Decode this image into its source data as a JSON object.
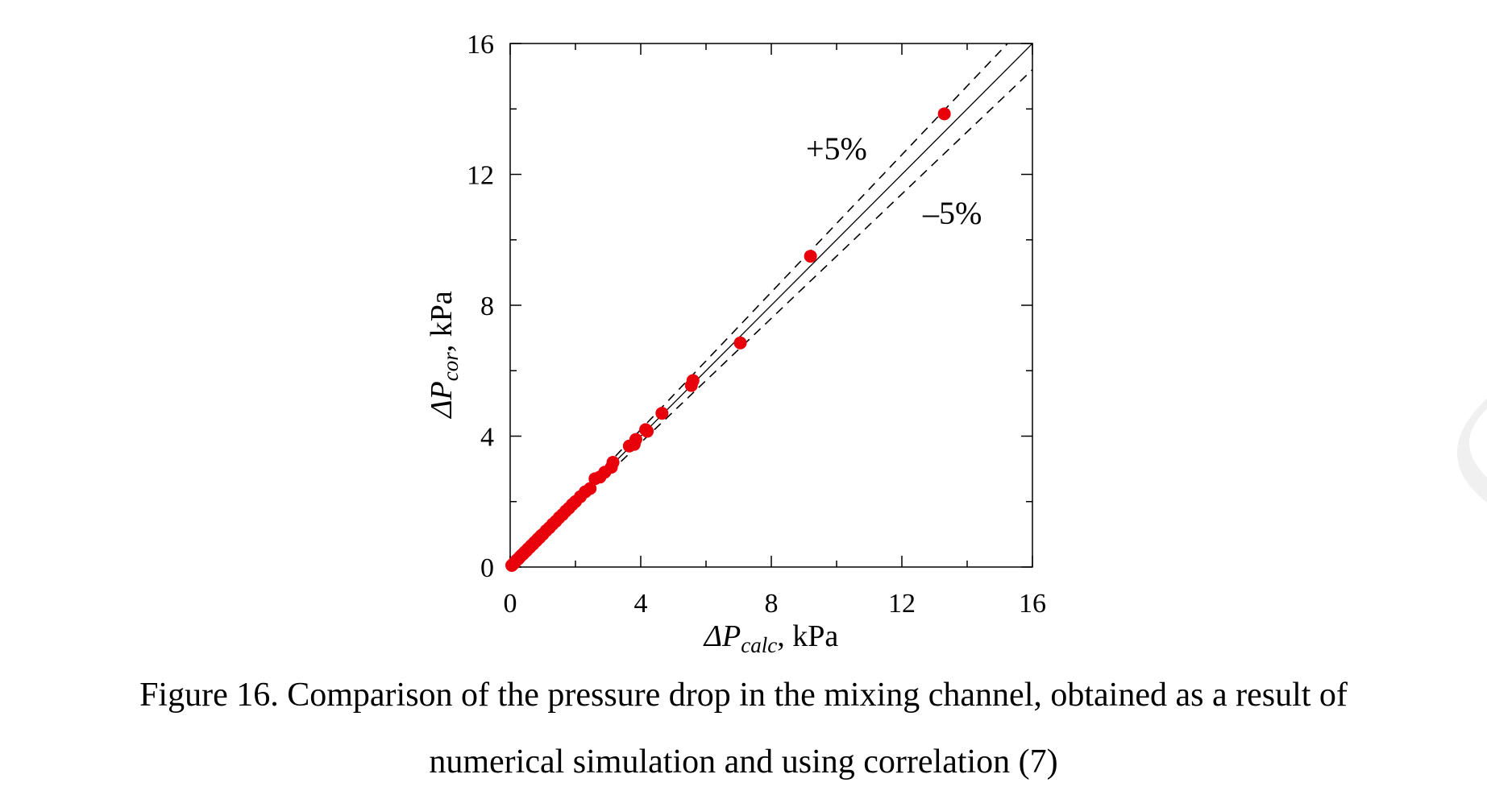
{
  "chart_data": {
    "type": "scatter",
    "xlabel_symbol": "ΔP",
    "xlabel_sub": "calc",
    "xlabel_unit": ", kPa",
    "ylabel_symbol": "ΔP",
    "ylabel_sub": "cor",
    "ylabel_unit": ", kPa",
    "xlim": [
      0,
      16
    ],
    "ylim": [
      0,
      16
    ],
    "xticks": [
      "0",
      "4",
      "8",
      "12",
      "16"
    ],
    "yticks": [
      "0",
      "4",
      "8",
      "12",
      "16"
    ],
    "grid": false,
    "marker_color": "#e8000b",
    "reference_lines": [
      {
        "label": "+5%",
        "slope": 1.05,
        "style": "dashed"
      },
      {
        "label": "",
        "slope": 1.0,
        "style": "solid"
      },
      {
        "label": "–5%",
        "slope": 0.95,
        "style": "dashed"
      }
    ],
    "points": [
      {
        "x": 0.05,
        "y": 0.05
      },
      {
        "x": 0.1,
        "y": 0.1
      },
      {
        "x": 0.15,
        "y": 0.15
      },
      {
        "x": 0.2,
        "y": 0.21
      },
      {
        "x": 0.25,
        "y": 0.25
      },
      {
        "x": 0.3,
        "y": 0.31
      },
      {
        "x": 0.35,
        "y": 0.36
      },
      {
        "x": 0.4,
        "y": 0.4
      },
      {
        "x": 0.45,
        "y": 0.46
      },
      {
        "x": 0.5,
        "y": 0.5
      },
      {
        "x": 0.55,
        "y": 0.56
      },
      {
        "x": 0.6,
        "y": 0.6
      },
      {
        "x": 0.65,
        "y": 0.66
      },
      {
        "x": 0.7,
        "y": 0.7
      },
      {
        "x": 0.75,
        "y": 0.76
      },
      {
        "x": 0.8,
        "y": 0.8
      },
      {
        "x": 0.85,
        "y": 0.86
      },
      {
        "x": 0.9,
        "y": 0.9
      },
      {
        "x": 0.95,
        "y": 0.96
      },
      {
        "x": 1.0,
        "y": 1.0
      },
      {
        "x": 1.1,
        "y": 1.11
      },
      {
        "x": 1.2,
        "y": 1.2
      },
      {
        "x": 1.3,
        "y": 1.31
      },
      {
        "x": 1.4,
        "y": 1.4
      },
      {
        "x": 1.5,
        "y": 1.51
      },
      {
        "x": 1.6,
        "y": 1.6
      },
      {
        "x": 1.7,
        "y": 1.71
      },
      {
        "x": 1.8,
        "y": 1.8
      },
      {
        "x": 1.9,
        "y": 1.91
      },
      {
        "x": 2.0,
        "y": 2.0
      },
      {
        "x": 2.15,
        "y": 2.15
      },
      {
        "x": 2.3,
        "y": 2.3
      },
      {
        "x": 2.45,
        "y": 2.4
      },
      {
        "x": 2.6,
        "y": 2.7
      },
      {
        "x": 2.75,
        "y": 2.75
      },
      {
        "x": 2.9,
        "y": 2.9
      },
      {
        "x": 3.1,
        "y": 3.05
      },
      {
        "x": 3.15,
        "y": 3.2
      },
      {
        "x": 3.65,
        "y": 3.7
      },
      {
        "x": 3.8,
        "y": 3.75
      },
      {
        "x": 3.85,
        "y": 3.9
      },
      {
        "x": 4.15,
        "y": 4.2
      },
      {
        "x": 4.2,
        "y": 4.15
      },
      {
        "x": 4.65,
        "y": 4.7
      },
      {
        "x": 5.55,
        "y": 5.55
      },
      {
        "x": 5.6,
        "y": 5.7
      },
      {
        "x": 7.05,
        "y": 6.85
      },
      {
        "x": 9.2,
        "y": 9.5
      },
      {
        "x": 13.3,
        "y": 13.85
      }
    ]
  },
  "caption_line1": "Figure 16. Comparison of the pressure drop in the mixing channel, obtained as a result of",
  "caption_line2": "numerical simulation and using correlation (7)",
  "watermark": "CRIPT"
}
